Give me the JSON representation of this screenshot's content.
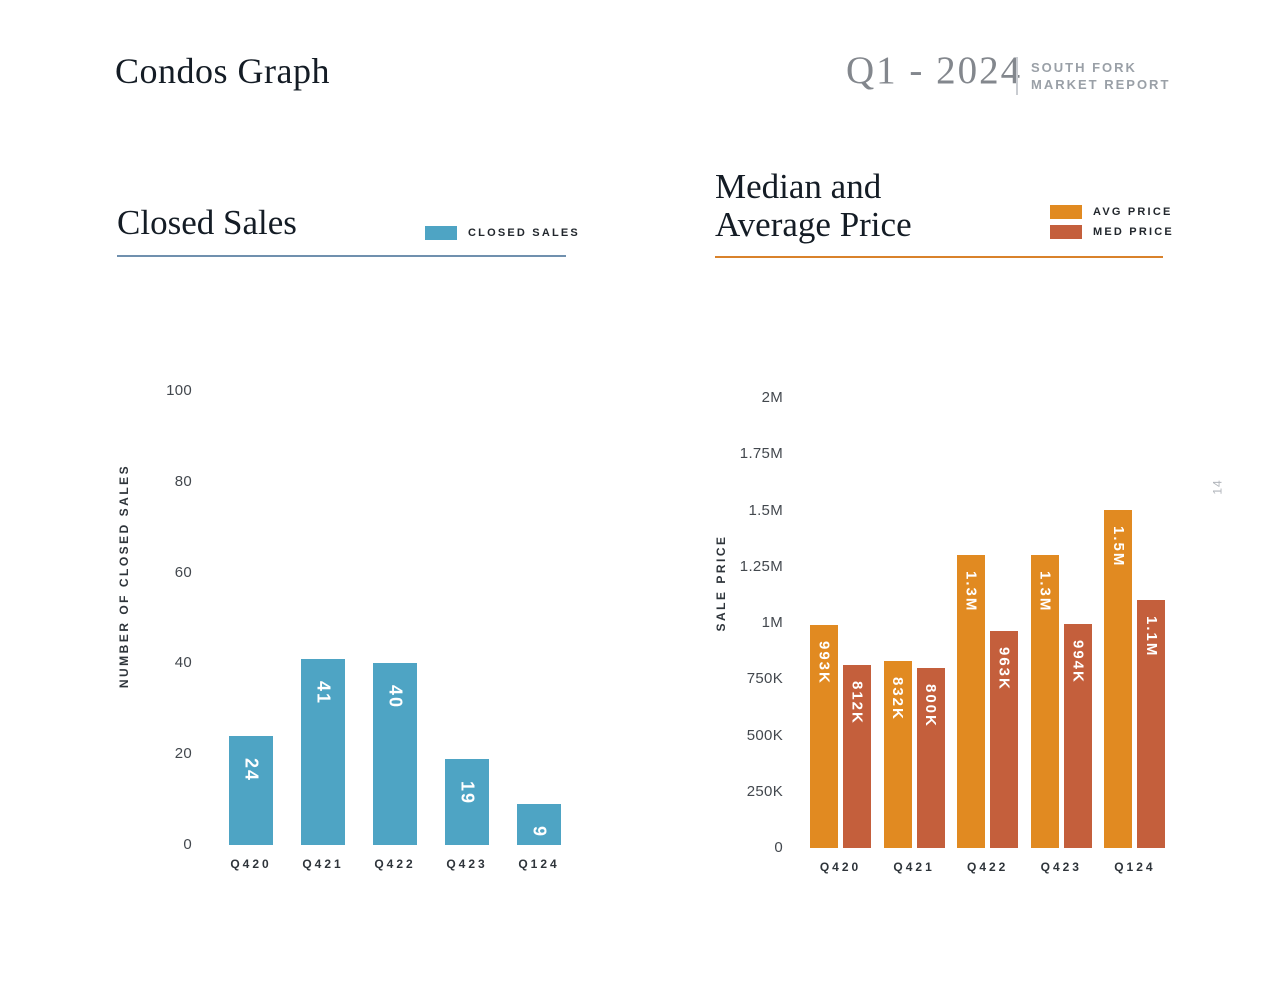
{
  "page": {
    "title": "Condos Graph",
    "period": "Q1 - 2024",
    "report_name_line1": "SOUTH FORK",
    "report_name_line2": "MARKET REPORT",
    "page_number": "14"
  },
  "colors": {
    "closed_sales_bar": "#4EA4C4",
    "avg_price_bar": "#E18A21",
    "med_price_bar": "#C45F3C",
    "closed_sales_rule": "#7090AE",
    "price_rule": "#D9822B"
  },
  "chart_data": [
    {
      "id": "closed_sales",
      "type": "bar",
      "title": "Closed Sales",
      "legend": [
        {
          "label": "CLOSED SALES",
          "color": "#4EA4C4"
        }
      ],
      "categories": [
        "Q420",
        "Q421",
        "Q422",
        "Q423",
        "Q124"
      ],
      "values": [
        24,
        41,
        40,
        19,
        9
      ],
      "bar_labels": [
        "24",
        "41",
        "40",
        "19",
        "9"
      ],
      "xlabel": "",
      "ylabel": "NUMBER OF CLOSED SALES",
      "yticks": [
        0,
        20,
        40,
        60,
        80,
        100
      ],
      "ytick_labels": [
        "0",
        "20",
        "40",
        "60",
        "80",
        "100"
      ],
      "ylim": [
        0,
        100
      ],
      "grid": false,
      "legend_position": "top-right"
    },
    {
      "id": "median_average_price",
      "type": "bar",
      "title": "Median and Average Price",
      "title_lines": [
        "Median and",
        "Average Price"
      ],
      "legend": [
        {
          "label": "AVG PRICE",
          "color": "#E18A21"
        },
        {
          "label": "MED PRICE",
          "color": "#C45F3C"
        }
      ],
      "categories": [
        "Q420",
        "Q421",
        "Q422",
        "Q423",
        "Q124"
      ],
      "series": [
        {
          "name": "AVG PRICE",
          "color": "#E18A21",
          "values": [
            993000,
            832000,
            1300000,
            1300000,
            1500000
          ],
          "labels": [
            "993K",
            "832K",
            "1.3M",
            "1.3M",
            "1.5M"
          ]
        },
        {
          "name": "MED PRICE",
          "color": "#C45F3C",
          "values": [
            812000,
            800000,
            963000,
            994000,
            1100000
          ],
          "labels": [
            "812K",
            "800K",
            "963K",
            "994K",
            "1.1M"
          ]
        }
      ],
      "xlabel": "",
      "ylabel": "SALE PRICE",
      "yticks": [
        0,
        250000,
        500000,
        750000,
        1000000,
        1250000,
        1500000,
        1750000,
        2000000
      ],
      "ytick_labels": [
        "0",
        "250K",
        "500K",
        "750K",
        "1M",
        "1.25M",
        "1.5M",
        "1.75M",
        "2M"
      ],
      "ylim": [
        0,
        2000000
      ],
      "grid": false,
      "legend_position": "top-right"
    }
  ]
}
